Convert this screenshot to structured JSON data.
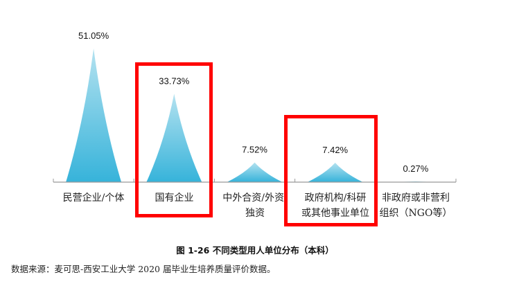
{
  "chart_data": {
    "type": "bar",
    "style": "triangle-peaks",
    "title": "图 1-26 不同类型用人单位分布（本科）",
    "categories": [
      "民营企业/个体",
      "国有企业",
      "中外合资/外资/独资",
      "政府机构/科研或其他事业单位",
      "非政府或非营利组织（NGO等）"
    ],
    "values": [
      51.05,
      33.73,
      7.52,
      7.42,
      0.27
    ],
    "value_labels": [
      "51.05%",
      "33.73%",
      "7.52%",
      "7.42%",
      "0.27%"
    ],
    "xlabel": "",
    "ylabel": "",
    "unit": "%",
    "grid": false,
    "legend": null,
    "highlighted_categories": [
      "国有企业",
      "政府机构/科研或其他事业单位"
    ],
    "colors": {
      "bar_top": "#b4e2f0",
      "bar_bottom": "#36b3da",
      "highlight_border": "#ff0000",
      "axis": "#999999"
    }
  },
  "labels": {
    "cat0_line1": "民营企业/个体",
    "cat1_line1": "国有企业",
    "cat2_line1": "中外合资/外资/",
    "cat2_line2": "独资",
    "cat3_line1": "政府机构/科研",
    "cat3_line2": "或其他事业单位",
    "cat4_line1": "非政府或非营利",
    "cat4_line2": "组织（NGO等）"
  },
  "caption": "图  1-26  不同类型用人单位分布（本科）",
  "source": "数据来源：麦可思-西安工业大学 2020 届毕业生培养质量评价数据。"
}
